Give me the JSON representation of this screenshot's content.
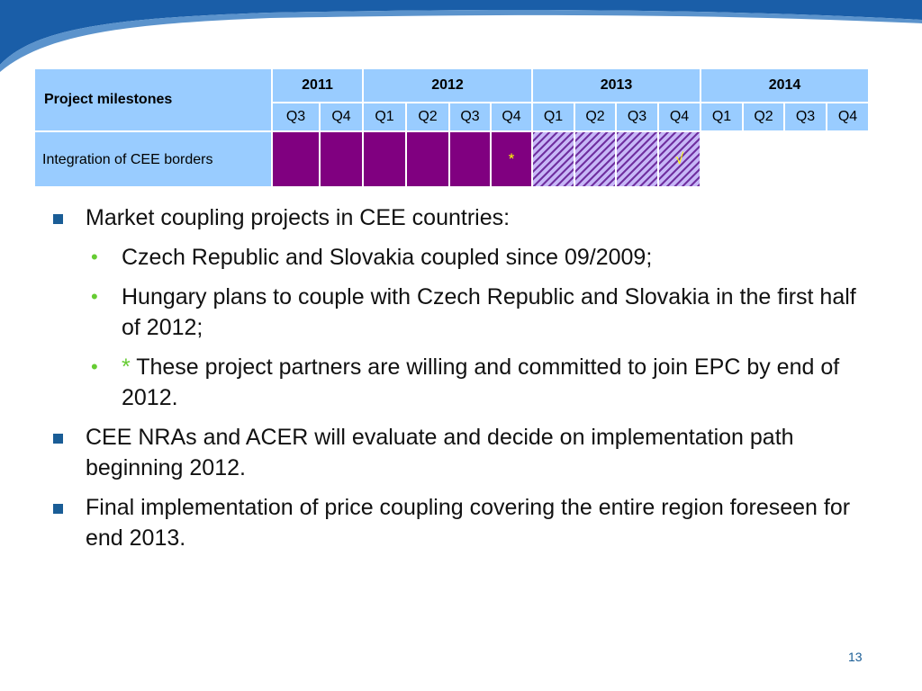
{
  "table": {
    "corner_label": "Project milestones",
    "years": [
      {
        "label": "2011",
        "span": 2
      },
      {
        "label": "2012",
        "span": 4
      },
      {
        "label": "2013",
        "span": 4
      },
      {
        "label": "2014",
        "span": 4
      }
    ],
    "quarters": [
      "Q3",
      "Q4",
      "Q1",
      "Q2",
      "Q3",
      "Q4",
      "Q1",
      "Q2",
      "Q3",
      "Q4",
      "Q1",
      "Q2",
      "Q3",
      "Q4"
    ],
    "rows": [
      {
        "label": "Integration of CEE borders",
        "cells": [
          {
            "status": "solid",
            "mark": ""
          },
          {
            "status": "solid",
            "mark": ""
          },
          {
            "status": "solid",
            "mark": ""
          },
          {
            "status": "solid",
            "mark": ""
          },
          {
            "status": "solid",
            "mark": ""
          },
          {
            "status": "solid",
            "mark": "*"
          },
          {
            "status": "hatched",
            "mark": ""
          },
          {
            "status": "hatched",
            "mark": ""
          },
          {
            "status": "hatched",
            "mark": ""
          },
          {
            "status": "hatched",
            "mark": "√"
          },
          {
            "status": "empty",
            "mark": ""
          },
          {
            "status": "empty",
            "mark": ""
          },
          {
            "status": "empty",
            "mark": ""
          },
          {
            "status": "empty",
            "mark": ""
          }
        ]
      }
    ]
  },
  "bullets": {
    "b1": "Market coupling projects in CEE countries:",
    "b1_1": "Czech Republic and Slovakia coupled since 09/2009;",
    "b1_2": "Hungary plans to couple with Czech Republic and Slovakia in the first half of 2012;",
    "b1_3_star": "*",
    "b1_3": " These project partners are willing and committed to join EPC by end of 2012.",
    "b2": "CEE NRAs and ACER will evaluate and decide on implementation path beginning 2012.",
    "b3": "Final implementation of price coupling covering the entire region foreseen for end 2013."
  },
  "page_number": "13",
  "colors": {
    "banner": "#1a5ea8",
    "header_fill": "#99ccff",
    "solid_fill": "#800080",
    "hatch_fill": "#7030a0",
    "bullet_square": "#1a5d96",
    "bullet_dot": "#66cc33"
  }
}
